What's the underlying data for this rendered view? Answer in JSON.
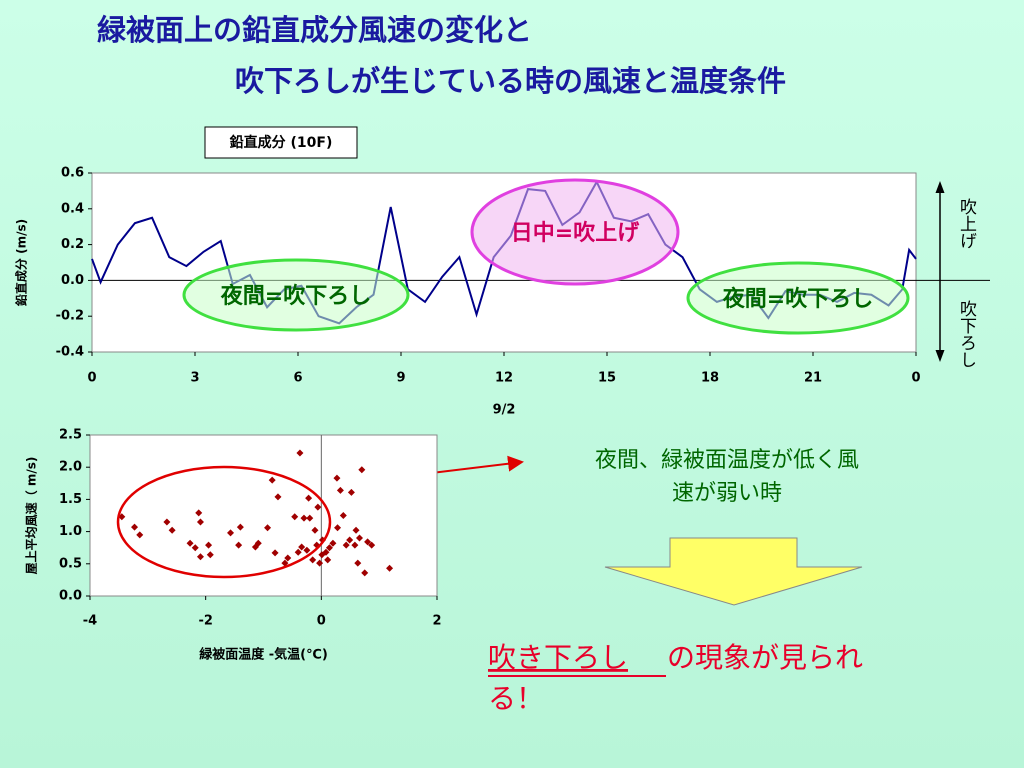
{
  "slide": {
    "title_lines": [
      "緑被面上の鉛直成分風速の変化と",
      "吹下ろしが生じている時の風速と温度条件"
    ],
    "note_lines": [
      "夜間、緑被面温度が低く風",
      "速が弱い時"
    ],
    "conclusion": {
      "highlight": "吹き下ろし",
      "rest_lines": [
        "の現象が見られ",
        "る！"
      ]
    }
  },
  "chart_data": [
    {
      "type": "line",
      "title": "鉛直成分 (10F)",
      "y_label": "鉛直成分 (m/s)",
      "x_label": "9/2",
      "xlim": [
        0,
        24
      ],
      "xticks": [
        0,
        3,
        6,
        9,
        12,
        15,
        18,
        21,
        {
          "value": 24,
          "label": "0"
        }
      ],
      "ylim": [
        -0.4,
        0.6
      ],
      "yticks": [
        -0.4,
        -0.2,
        {
          "value": 0,
          "label": "0.0"
        },
        0.2,
        0.4,
        0.6
      ],
      "grid": false,
      "annotations": [
        "日中=吹上げ",
        "夜間=吹下ろし",
        "夜間=吹下ろし"
      ],
      "up_label": "吹上げ",
      "down_label": "吹下ろし",
      "series": [
        {
          "color": "#00008b",
          "x": [
            0,
            0.25,
            0.75,
            1.25,
            1.75,
            2.25,
            2.75,
            3.25,
            3.75,
            4.1,
            4.6,
            5.1,
            5.6,
            6.1,
            6.6,
            7.2,
            7.7,
            8.2,
            8.7,
            9.2,
            9.7,
            10.2,
            10.7,
            11.2,
            11.7,
            12.2,
            12.7,
            13.2,
            13.7,
            14.2,
            14.7,
            15.2,
            15.7,
            16.2,
            16.7,
            17.2,
            17.7,
            18.2,
            18.7,
            19.2,
            19.7,
            20.2,
            20.7,
            21.2,
            21.7,
            22.2,
            22.7,
            23.2,
            23.6,
            23.8,
            24
          ],
          "values": [
            0.12,
            -0.01,
            0.2,
            0.32,
            0.35,
            0.13,
            0.08,
            0.16,
            0.22,
            -0.02,
            0.03,
            -0.15,
            -0.05,
            -0.03,
            -0.2,
            -0.24,
            -0.15,
            -0.08,
            0.41,
            -0.05,
            -0.12,
            0.02,
            0.13,
            -0.19,
            0.13,
            0.25,
            0.51,
            0.5,
            0.31,
            0.38,
            0.55,
            0.35,
            0.33,
            0.37,
            0.2,
            0.13,
            -0.05,
            -0.12,
            -0.09,
            -0.08,
            -0.21,
            -0.06,
            -0.08,
            -0.08,
            -0.12,
            -0.07,
            -0.08,
            -0.14,
            -0.05,
            0.17,
            0.12
          ]
        }
      ]
    },
    {
      "type": "scatter",
      "x_label": "緑被面温度 -気温(℃)",
      "y_label": "屋上平均風速（ m/s)",
      "xlim": [
        -4,
        2
      ],
      "xticks": [
        -4,
        -2,
        0,
        2
      ],
      "ylim": [
        0,
        2.5
      ],
      "yticks": [
        {
          "value": 0,
          "label": "0.0"
        },
        0.5,
        {
          "value": 1,
          "label": "1.0"
        },
        1.5,
        {
          "value": 2,
          "label": "2.0"
        },
        2.5
      ],
      "grid": false,
      "series": [
        {
          "color": "#a00000",
          "x": [
            -3.45,
            -3.23,
            -3.14,
            -2.67,
            -2.58,
            -2.27,
            -2.18,
            -2.12,
            -2.09,
            -2.09,
            -1.95,
            -1.92,
            -1.57,
            -1.43,
            -1.4,
            -1.14,
            -1.09,
            -0.93,
            -0.85,
            -0.8,
            -0.75,
            -0.63,
            -0.58,
            -0.46,
            -0.4,
            -0.37,
            -0.34,
            -0.3,
            -0.25,
            -0.22,
            -0.2,
            -0.15,
            -0.11,
            -0.08,
            -0.03,
            0.01,
            0.02,
            0.08,
            0.11,
            0.14,
            0.2,
            0.27,
            0.28,
            0.33,
            0.38,
            0.43,
            0.49,
            0.52,
            0.58,
            0.6,
            0.63,
            0.66,
            0.7,
            0.75,
            0.8,
            0.87,
            1.18,
            -0.06
          ],
          "values": [
            1.23,
            1.07,
            0.95,
            1.15,
            1.02,
            0.82,
            0.75,
            1.29,
            1.15,
            0.61,
            0.79,
            0.64,
            0.98,
            0.79,
            1.07,
            0.76,
            0.82,
            1.06,
            1.8,
            0.67,
            1.54,
            0.51,
            0.59,
            1.23,
            0.68,
            2.22,
            0.76,
            1.21,
            0.71,
            1.52,
            1.21,
            0.56,
            1.02,
            0.79,
            0.51,
            0.64,
            0.87,
            0.68,
            0.56,
            0.75,
            0.82,
            1.83,
            1.06,
            1.64,
            1.25,
            0.79,
            0.87,
            1.61,
            0.79,
            1.02,
            0.51,
            0.9,
            1.96,
            0.36,
            0.84,
            0.79,
            0.43,
            1.38
          ]
        }
      ]
    }
  ]
}
